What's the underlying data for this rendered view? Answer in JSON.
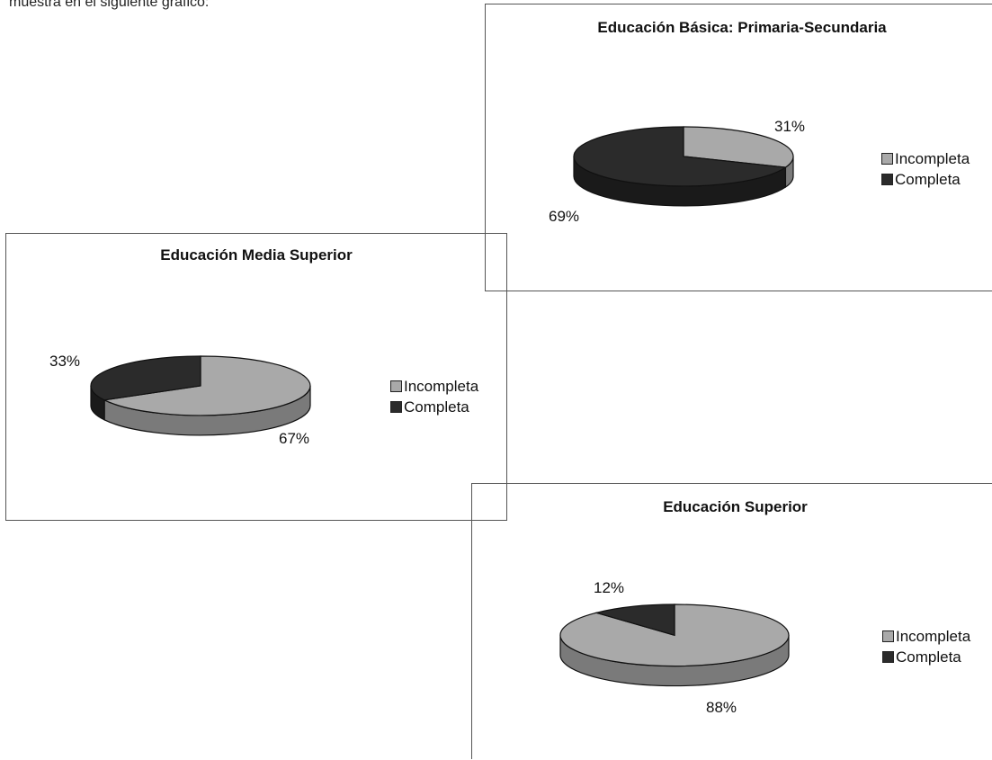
{
  "page": {
    "intro_text": "muestra en el siguiente gráfico:"
  },
  "colors": {
    "incompleta": "#a9a9a9",
    "incompleta_side": "#7a7a7a",
    "completa": "#2b2b2b",
    "completa_side": "#1a1a1a"
  },
  "chart_data": [
    {
      "type": "pie",
      "title": "Educación Básica: Primaria-Secundaria",
      "slices": [
        {
          "label": "Incompleta",
          "value": 31,
          "display": "31%"
        },
        {
          "label": "Completa",
          "value": 69,
          "display": "69%"
        }
      ],
      "legend": [
        "Incompleta",
        "Completa"
      ],
      "legend_position": "right"
    },
    {
      "type": "pie",
      "title": "Educación Media  Superior",
      "slices": [
        {
          "label": "Incompleta",
          "value": 67,
          "display": "67%"
        },
        {
          "label": "Completa",
          "value": 33,
          "display": "33%"
        }
      ],
      "legend": [
        "Incompleta",
        "Completa"
      ],
      "legend_position": "right"
    },
    {
      "type": "pie",
      "title": "Educación Superior",
      "slices": [
        {
          "label": "Incompleta",
          "value": 88,
          "display": "88%"
        },
        {
          "label": "Completa",
          "value": 12,
          "display": "12%"
        }
      ],
      "legend": [
        "Incompleta",
        "Completa"
      ],
      "legend_position": "right"
    }
  ]
}
